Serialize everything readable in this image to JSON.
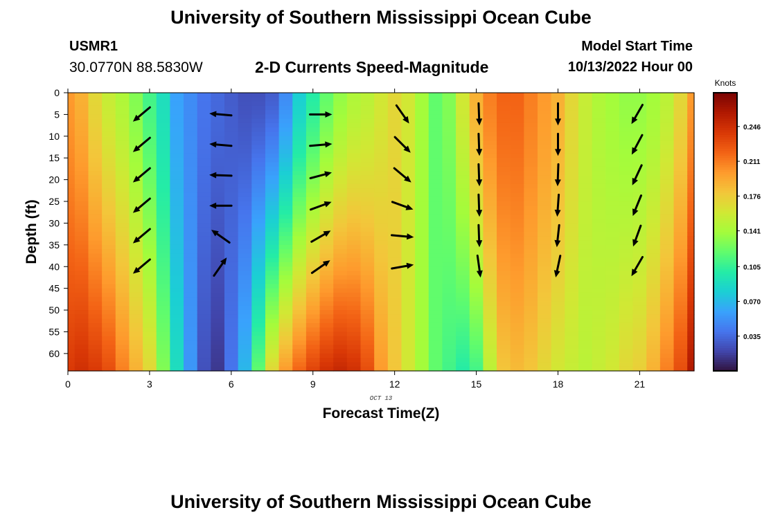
{
  "header": {
    "title": "University of Southern Mississippi Ocean Cube",
    "station": "USMR1",
    "coordinates": "30.0770N  88.5830W",
    "subtitle": "2-D Currents Speed-Magnitude",
    "model_start_label": "Model Start Time",
    "model_start_value": "10/13/2022 Hour 00"
  },
  "footer": {
    "title": "University of Southern Mississippi Ocean Cube"
  },
  "chart_data": {
    "type": "heatmap",
    "title": "2-D Currents Speed-Magnitude",
    "xlabel": "Forecast Time(Z)",
    "ylabel": "Depth (ft)",
    "date_label": "OCT 13",
    "xlim": [
      0,
      23
    ],
    "ylim": [
      0,
      64
    ],
    "x_ticks": [
      0,
      3,
      6,
      9,
      12,
      15,
      18,
      21
    ],
    "y_ticks": [
      0,
      5,
      10,
      15,
      20,
      25,
      30,
      35,
      40,
      45,
      50,
      55,
      60
    ],
    "colorbar": {
      "label": "Knots",
      "min": 0,
      "max": 0.28,
      "ticks": [
        "0.035",
        "0.070",
        "0.105",
        "0.141",
        "0.176",
        "0.211",
        "0.246"
      ],
      "tick_values": [
        0.035,
        0.07,
        0.105,
        0.141,
        0.176,
        0.211,
        0.246
      ],
      "colors": [
        "#30123b",
        "#4145ab",
        "#4675ed",
        "#39a2fc",
        "#1bcfd4",
        "#24eca6",
        "#61fc6c",
        "#a4fc3b",
        "#d1e834",
        "#f3c63a",
        "#fe9b2d",
        "#f36315",
        "#d93806",
        "#b11901",
        "#7a0403"
      ]
    },
    "time_hours": [
      0,
      0.5,
      1,
      1.5,
      2,
      2.5,
      3,
      3.5,
      4,
      4.5,
      5,
      5.5,
      6,
      6.5,
      7,
      7.5,
      8,
      8.5,
      9,
      9.5,
      10,
      10.5,
      11,
      11.5,
      12,
      12.5,
      13,
      13.5,
      14,
      14.5,
      15,
      15.5,
      16,
      16.5,
      17,
      17.5,
      18,
      18.5,
      19,
      19.5,
      20,
      20.5,
      21,
      21.5,
      22,
      22.5,
      23
    ],
    "speed_top_knots": [
      0.2,
      0.19,
      0.17,
      0.155,
      0.145,
      0.13,
      0.11,
      0.09,
      0.06,
      0.05,
      0.04,
      0.035,
      0.03,
      0.025,
      0.025,
      0.03,
      0.05,
      0.08,
      0.1,
      0.12,
      0.135,
      0.145,
      0.15,
      0.16,
      0.17,
      0.16,
      0.14,
      0.12,
      0.13,
      0.16,
      0.19,
      0.21,
      0.22,
      0.22,
      0.21,
      0.2,
      0.19,
      0.17,
      0.155,
      0.145,
      0.14,
      0.135,
      0.135,
      0.14,
      0.15,
      0.17,
      0.2
    ],
    "speed_bottom_knots": [
      0.24,
      0.245,
      0.24,
      0.23,
      0.21,
      0.19,
      0.17,
      0.13,
      0.09,
      0.055,
      0.025,
      0.015,
      0.04,
      0.07,
      0.12,
      0.17,
      0.2,
      0.22,
      0.235,
      0.245,
      0.25,
      0.245,
      0.23,
      0.2,
      0.18,
      0.16,
      0.14,
      0.12,
      0.11,
      0.1,
      0.11,
      0.15,
      0.18,
      0.185,
      0.18,
      0.17,
      0.16,
      0.155,
      0.15,
      0.155,
      0.16,
      0.17,
      0.175,
      0.19,
      0.21,
      0.23,
      0.26
    ],
    "arrow_times": [
      2.7,
      5.6,
      9.3,
      12.3,
      15.1,
      18.0,
      20.9
    ],
    "arrow_depths": [
      5,
      12,
      19,
      26,
      33,
      40
    ],
    "arrow_angles_deg": [
      [
        -140,
        -140,
        -140,
        -140,
        -140,
        -140
      ],
      [
        175,
        175,
        178,
        180,
        145,
        55
      ],
      [
        0,
        5,
        15,
        20,
        30,
        35
      ],
      [
        -55,
        -45,
        -40,
        -20,
        -5,
        10
      ],
      [
        -88,
        -88,
        -88,
        -88,
        -88,
        -82
      ],
      [
        -90,
        -90,
        -92,
        -94,
        -96,
        -102
      ],
      [
        -120,
        -118,
        -115,
        -112,
        -110,
        -120
      ]
    ]
  }
}
